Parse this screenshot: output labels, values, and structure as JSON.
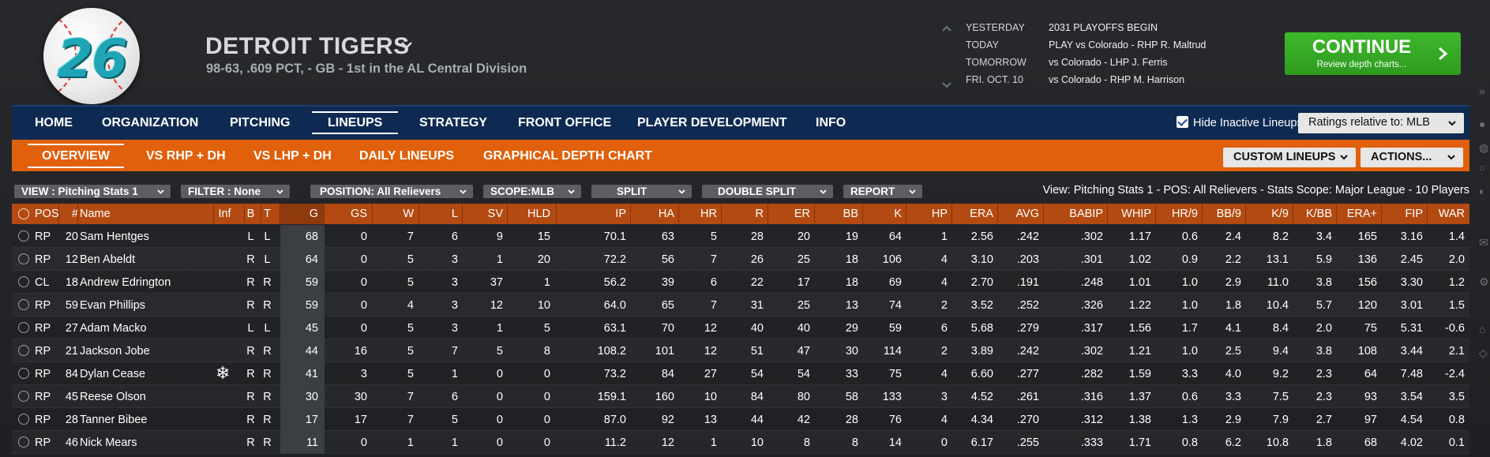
{
  "team": {
    "logo_number": "26",
    "name": "DETROIT TIGERS",
    "record": "98-63, .609 PCT, - GB - 1st in the AL Central Division"
  },
  "schedule": [
    {
      "label": "YESTERDAY",
      "value": "2031 PLAYOFFS BEGIN"
    },
    {
      "label": "TODAY",
      "value": "PLAY vs Colorado - RHP R. Maltrud"
    },
    {
      "label": "TOMORROW",
      "value": "vs Colorado - LHP J. Ferris"
    },
    {
      "label": "FRI. OCT. 10",
      "value": "vs Colorado - RHP M. Harrison"
    }
  ],
  "continue": {
    "label": "CONTINUE",
    "sub": "Review depth charts..."
  },
  "main_nav": {
    "items": [
      "HOME",
      "ORGANIZATION",
      "PITCHING",
      "LINEUPS",
      "STRATEGY",
      "FRONT OFFICE",
      "PLAYER DEVELOPMENT",
      "INFO"
    ],
    "active": "LINEUPS",
    "hide_inactive_label": "Hide Inactive Lineups",
    "ratings_label": "Ratings relative to: MLB"
  },
  "sub_nav": {
    "items": [
      "OVERVIEW",
      "VS RHP + DH",
      "VS LHP + DH",
      "DAILY LINEUPS",
      "GRAPHICAL DEPTH CHART"
    ],
    "active": "OVERVIEW",
    "custom_lineups": "CUSTOM LINEUPS",
    "actions": "ACTIONS..."
  },
  "filters": {
    "view": "VIEW : Pitching Stats 1",
    "filter": "FILTER : None",
    "position": "POSITION: All Relievers",
    "scope": "SCOPE:MLB",
    "split": "SPLIT",
    "double_split": "DOUBLE SPLIT",
    "report": "REPORT",
    "view_info": "View: Pitching Stats 1 - POS: All Relievers - Stats Scope: Major League - 10 Players"
  },
  "table": {
    "columns": [
      "POS",
      "#",
      "Name",
      "Inf",
      "B",
      "T",
      "G",
      "GS",
      "W",
      "L",
      "SV",
      "HLD",
      "IP",
      "HA",
      "HR",
      "R",
      "ER",
      "BB",
      "K",
      "HP",
      "ERA",
      "AVG",
      "BABIP",
      "WHIP",
      "HR/9",
      "BB/9",
      "K/9",
      "K/BB",
      "ERA+",
      "FIP",
      "WAR"
    ],
    "rows": [
      {
        "POS": "RP",
        "num": "20",
        "Name": "Sam Hentges",
        "Inf": "",
        "B": "L",
        "T": "L",
        "G": "68",
        "GS": "0",
        "W": "7",
        "L": "6",
        "SV": "9",
        "HLD": "15",
        "IP": "70.1",
        "HA": "63",
        "HR": "5",
        "R": "28",
        "ER": "20",
        "BB": "19",
        "K": "64",
        "HP": "1",
        "ERA": "2.56",
        "AVG": ".242",
        "BABIP": ".302",
        "WHIP": "1.17",
        "HR9": "0.6",
        "BB9": "2.4",
        "K9": "8.2",
        "KBB": "3.4",
        "ERAp": "165",
        "FIP": "3.16",
        "WAR": "1.4"
      },
      {
        "POS": "RP",
        "num": "12",
        "Name": "Ben Abeldt",
        "Inf": "",
        "B": "R",
        "T": "L",
        "G": "64",
        "GS": "0",
        "W": "5",
        "L": "3",
        "SV": "1",
        "HLD": "20",
        "IP": "72.2",
        "HA": "56",
        "HR": "7",
        "R": "26",
        "ER": "25",
        "BB": "18",
        "K": "106",
        "HP": "4",
        "ERA": "3.10",
        "AVG": ".203",
        "BABIP": ".301",
        "WHIP": "1.02",
        "HR9": "0.9",
        "BB9": "2.2",
        "K9": "13.1",
        "KBB": "5.9",
        "ERAp": "136",
        "FIP": "2.45",
        "WAR": "2.0"
      },
      {
        "POS": "CL",
        "num": "18",
        "Name": "Andrew Edrington",
        "Inf": "",
        "B": "R",
        "T": "R",
        "G": "59",
        "GS": "0",
        "W": "5",
        "L": "3",
        "SV": "37",
        "HLD": "1",
        "IP": "56.2",
        "HA": "39",
        "HR": "6",
        "R": "22",
        "ER": "17",
        "BB": "18",
        "K": "69",
        "HP": "4",
        "ERA": "2.70",
        "AVG": ".191",
        "BABIP": ".248",
        "WHIP": "1.01",
        "HR9": "1.0",
        "BB9": "2.9",
        "K9": "11.0",
        "KBB": "3.8",
        "ERAp": "156",
        "FIP": "3.30",
        "WAR": "1.2"
      },
      {
        "POS": "RP",
        "num": "59",
        "Name": "Evan Phillips",
        "Inf": "",
        "B": "R",
        "T": "R",
        "G": "59",
        "GS": "0",
        "W": "4",
        "L": "3",
        "SV": "12",
        "HLD": "10",
        "IP": "64.0",
        "HA": "65",
        "HR": "7",
        "R": "31",
        "ER": "25",
        "BB": "13",
        "K": "74",
        "HP": "2",
        "ERA": "3.52",
        "AVG": ".252",
        "BABIP": ".326",
        "WHIP": "1.22",
        "HR9": "1.0",
        "BB9": "1.8",
        "K9": "10.4",
        "KBB": "5.7",
        "ERAp": "120",
        "FIP": "3.01",
        "WAR": "1.5"
      },
      {
        "POS": "RP",
        "num": "27",
        "Name": "Adam Macko",
        "Inf": "",
        "B": "L",
        "T": "L",
        "G": "45",
        "GS": "0",
        "W": "5",
        "L": "3",
        "SV": "1",
        "HLD": "5",
        "IP": "63.1",
        "HA": "70",
        "HR": "12",
        "R": "40",
        "ER": "40",
        "BB": "29",
        "K": "59",
        "HP": "6",
        "ERA": "5.68",
        "AVG": ".279",
        "BABIP": ".317",
        "WHIP": "1.56",
        "HR9": "1.7",
        "BB9": "4.1",
        "K9": "8.4",
        "KBB": "2.0",
        "ERAp": "75",
        "FIP": "5.31",
        "WAR": "-0.6"
      },
      {
        "POS": "RP",
        "num": "21",
        "Name": "Jackson Jobe",
        "Inf": "",
        "B": "R",
        "T": "R",
        "G": "44",
        "GS": "16",
        "W": "5",
        "L": "7",
        "SV": "5",
        "HLD": "8",
        "IP": "108.2",
        "HA": "101",
        "HR": "12",
        "R": "51",
        "ER": "47",
        "BB": "30",
        "K": "114",
        "HP": "2",
        "ERA": "3.89",
        "AVG": ".242",
        "BABIP": ".302",
        "WHIP": "1.21",
        "HR9": "1.0",
        "BB9": "2.5",
        "K9": "9.4",
        "KBB": "3.8",
        "ERAp": "108",
        "FIP": "3.44",
        "WAR": "2.1"
      },
      {
        "POS": "RP",
        "num": "84",
        "Name": "Dylan Cease",
        "Inf": "❄",
        "B": "R",
        "T": "R",
        "G": "41",
        "GS": "3",
        "W": "5",
        "L": "1",
        "SV": "0",
        "HLD": "0",
        "IP": "73.2",
        "HA": "84",
        "HR": "27",
        "R": "54",
        "ER": "54",
        "BB": "33",
        "K": "75",
        "HP": "4",
        "ERA": "6.60",
        "AVG": ".277",
        "BABIP": ".282",
        "WHIP": "1.59",
        "HR9": "3.3",
        "BB9": "4.0",
        "K9": "9.2",
        "KBB": "2.3",
        "ERAp": "64",
        "FIP": "7.48",
        "WAR": "-2.4"
      },
      {
        "POS": "RP",
        "num": "45",
        "Name": "Reese Olson",
        "Inf": "",
        "B": "R",
        "T": "R",
        "G": "30",
        "GS": "30",
        "W": "7",
        "L": "6",
        "SV": "0",
        "HLD": "0",
        "IP": "159.1",
        "HA": "160",
        "HR": "10",
        "R": "84",
        "ER": "80",
        "BB": "58",
        "K": "133",
        "HP": "3",
        "ERA": "4.52",
        "AVG": ".261",
        "BABIP": ".316",
        "WHIP": "1.37",
        "HR9": "0.6",
        "BB9": "3.3",
        "K9": "7.5",
        "KBB": "2.3",
        "ERAp": "93",
        "FIP": "3.54",
        "WAR": "3.5"
      },
      {
        "POS": "RP",
        "num": "28",
        "Name": "Tanner Bibee",
        "Inf": "",
        "B": "R",
        "T": "R",
        "G": "17",
        "GS": "17",
        "W": "7",
        "L": "5",
        "SV": "0",
        "HLD": "0",
        "IP": "87.0",
        "HA": "92",
        "HR": "13",
        "R": "44",
        "ER": "42",
        "BB": "28",
        "K": "76",
        "HP": "4",
        "ERA": "4.34",
        "AVG": ".270",
        "BABIP": ".312",
        "WHIP": "1.38",
        "HR9": "1.3",
        "BB9": "2.9",
        "K9": "7.9",
        "KBB": "2.7",
        "ERAp": "97",
        "FIP": "4.54",
        "WAR": "0.8"
      },
      {
        "POS": "RP",
        "num": "46",
        "Name": "Nick Mears",
        "Inf": "",
        "B": "R",
        "T": "R",
        "G": "11",
        "GS": "0",
        "W": "1",
        "L": "1",
        "SV": "0",
        "HLD": "0",
        "IP": "11.2",
        "HA": "12",
        "HR": "1",
        "R": "10",
        "ER": "8",
        "BB": "8",
        "K": "14",
        "HP": "0",
        "ERA": "6.17",
        "AVG": ".255",
        "BABIP": ".333",
        "WHIP": "1.71",
        "HR9": "0.8",
        "BB9": "6.2",
        "K9": "10.8",
        "KBB": "1.8",
        "ERAp": "68",
        "FIP": "4.02",
        "WAR": "0.1"
      }
    ]
  },
  "colors": {
    "nav_blue": "#0f2a52",
    "sub_orange": "#e0600b",
    "header_orange": "#b24a12",
    "continue_green": "#3eb82c"
  }
}
